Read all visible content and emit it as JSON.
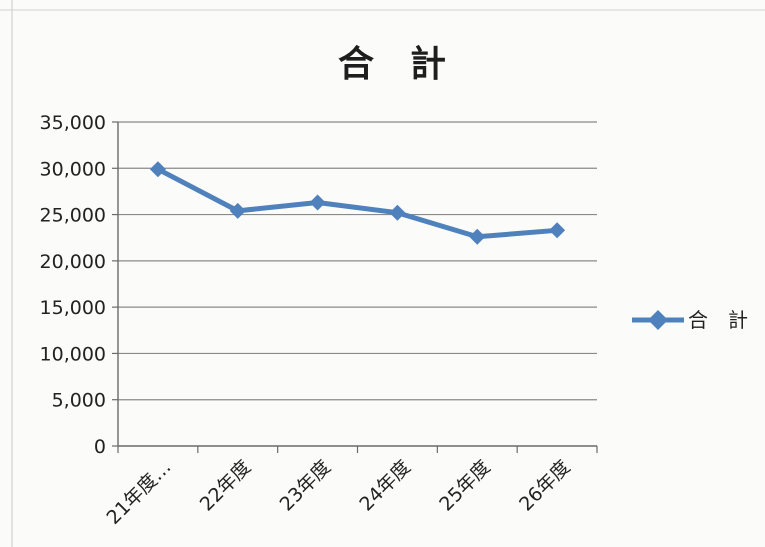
{
  "chart_data": {
    "type": "line",
    "title": "合　計",
    "categories": [
      "21年度…",
      "22年度",
      "23年度",
      "24年度",
      "25年度",
      "26年度"
    ],
    "series": [
      {
        "name": "合　計",
        "values": [
          29900,
          25400,
          26300,
          25200,
          22600,
          23300
        ]
      }
    ],
    "ylim": [
      0,
      35000
    ],
    "yticks": [
      0,
      5000,
      10000,
      15000,
      20000,
      25000,
      30000,
      35000
    ],
    "ytick_labels": [
      "0",
      "5,000",
      "10,000",
      "15,000",
      "20,000",
      "25,000",
      "30,000",
      "35,000"
    ],
    "grid": true,
    "legend": "right",
    "colors": {
      "series": "#4f81bd",
      "grid": "#8a8a8a",
      "axis": "#6a6a6a",
      "text": "#222222"
    }
  }
}
